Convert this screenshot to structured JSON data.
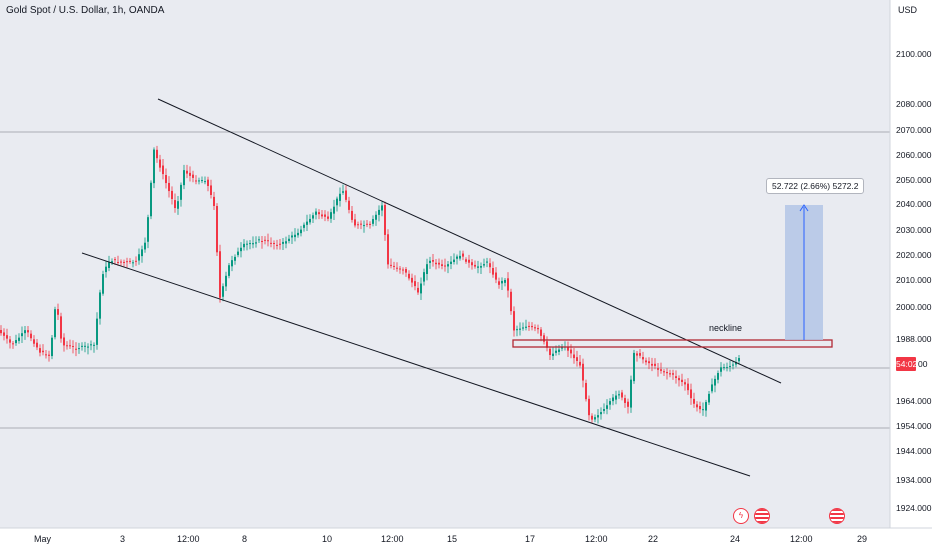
{
  "header": {
    "symbol_title": "Gold Spot / U.S. Dollar, 1h, OANDA",
    "currency": "USD"
  },
  "price_axis": {
    "labels": [
      "2100.000",
      "2080.000",
      "2070.000",
      "2060.000",
      "2050.000",
      "2040.000",
      "2030.000",
      "2020.000",
      "2010.000",
      "2000.000",
      "1988.000",
      "1964.000",
      "1954.000",
      "1944.000",
      "1934.000",
      "1924.000"
    ],
    "current_price_badge": "54:02",
    "current_price_tail": "00"
  },
  "time_axis": {
    "labels": [
      "May",
      "3",
      "12:00",
      "8",
      "10",
      "12:00",
      "15",
      "17",
      "12:00",
      "22",
      "24",
      "12:00",
      "29"
    ]
  },
  "annotations": {
    "measure_label": "52.722 (2.66%) 5272.2",
    "neckline_label": "neckline"
  },
  "events": [
    {
      "icon": "flash-event-icon"
    },
    {
      "icon": "us-flag-event-icon"
    },
    {
      "icon": "us-flag-event-icon"
    }
  ],
  "colors": {
    "plot_bg": "#e9ebf1",
    "up_candle": "#089981",
    "down_candle": "#f23645",
    "trendline": "#131722",
    "neckline_box": "#b22833",
    "measure_fill": "#b3c6e6",
    "price_badge": "#f23645"
  }
}
